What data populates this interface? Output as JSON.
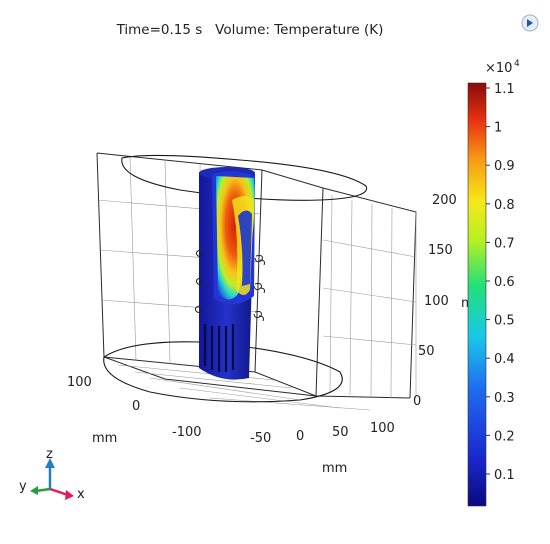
{
  "header": {
    "time_label": "Time=0.15 s",
    "volume_label": "Volume: Temperature (K)"
  },
  "colorbar": {
    "multiplier": "×10",
    "exponent": "4",
    "ticks": [
      "1.1",
      "1",
      "0.9",
      "0.8",
      "0.7",
      "0.6",
      "0.5",
      "0.4",
      "0.3",
      "0.2",
      "0.1"
    ]
  },
  "axes": {
    "x_unit": "mm",
    "y_unit": "mm",
    "z_unit": "mm",
    "x_ticks": [
      "-100",
      "-50",
      "0",
      "50",
      "100"
    ],
    "y_ticks": [
      "100",
      "0"
    ],
    "z_ticks": [
      "200",
      "150",
      "100",
      "50",
      "0"
    ]
  },
  "triad": {
    "x": "x",
    "y": "y",
    "z": "z"
  },
  "colors": {
    "hot": "#d81e05",
    "cold": "#141a8c",
    "triad_x": "#e6195e",
    "triad_y": "#2a9d3a",
    "triad_z": "#1f80c4"
  },
  "icons": {
    "logo": "comsol-logo-icon"
  }
}
